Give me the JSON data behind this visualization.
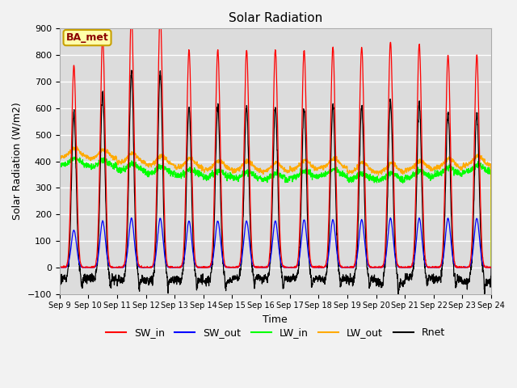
{
  "title": "Solar Radiation",
  "xlabel": "Time",
  "ylabel": "Solar Radiation (W/m2)",
  "ylim": [
    -100,
    900
  ],
  "background_color": "#dcdcdc",
  "grid_color": "#ffffff",
  "annotation": "BA_met",
  "annotation_bg": "#ffffaa",
  "annotation_border": "#c8a000",
  "tick_labels": [
    "Sep 9",
    "Sep 10",
    "Sep 11",
    "Sep 12",
    "Sep 13",
    "Sep 14",
    "Sep 15",
    "Sep 16",
    "Sep 17",
    "Sep 18",
    "Sep 19",
    "Sep 20",
    "Sep 21",
    "Sep 22",
    "Sep 23",
    "Sep 24"
  ],
  "n_days": 15,
  "colors": {
    "SW_in": "#ff0000",
    "SW_out": "#0000ff",
    "LW_in": "#00ff00",
    "LW_out": "#ffaa00",
    "Rnet": "#000000"
  },
  "legend_entries": [
    "SW_in",
    "SW_out",
    "LW_in",
    "LW_out",
    "Rnet"
  ]
}
